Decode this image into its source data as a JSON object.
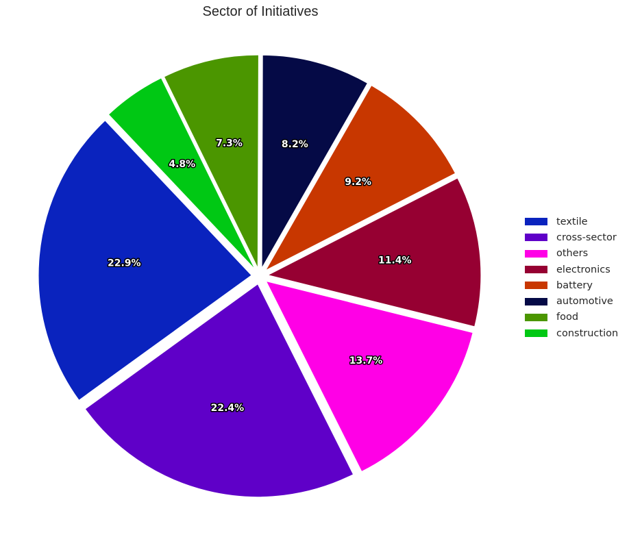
{
  "chart_data": {
    "type": "pie",
    "title": "Sector of Initiatives",
    "legend_position": "right",
    "slice_label_format": "percent, 1 decimal",
    "slices": [
      {
        "label": "textile",
        "value": 22.9,
        "color": "#0a23be"
      },
      {
        "label": "cross-sector",
        "value": 22.4,
        "color": "#5f00c8"
      },
      {
        "label": "others",
        "value": 13.7,
        "color": "#ff00e6"
      },
      {
        "label": "electronics",
        "value": 11.4,
        "color": "#960032"
      },
      {
        "label": "battery",
        "value": 9.2,
        "color": "#c83700"
      },
      {
        "label": "automotive",
        "value": 8.2,
        "color": "#050a46"
      },
      {
        "label": "food",
        "value": 7.3,
        "color": "#4b9600"
      },
      {
        "label": "construction",
        "value": 4.8,
        "color": "#00c814"
      }
    ]
  }
}
